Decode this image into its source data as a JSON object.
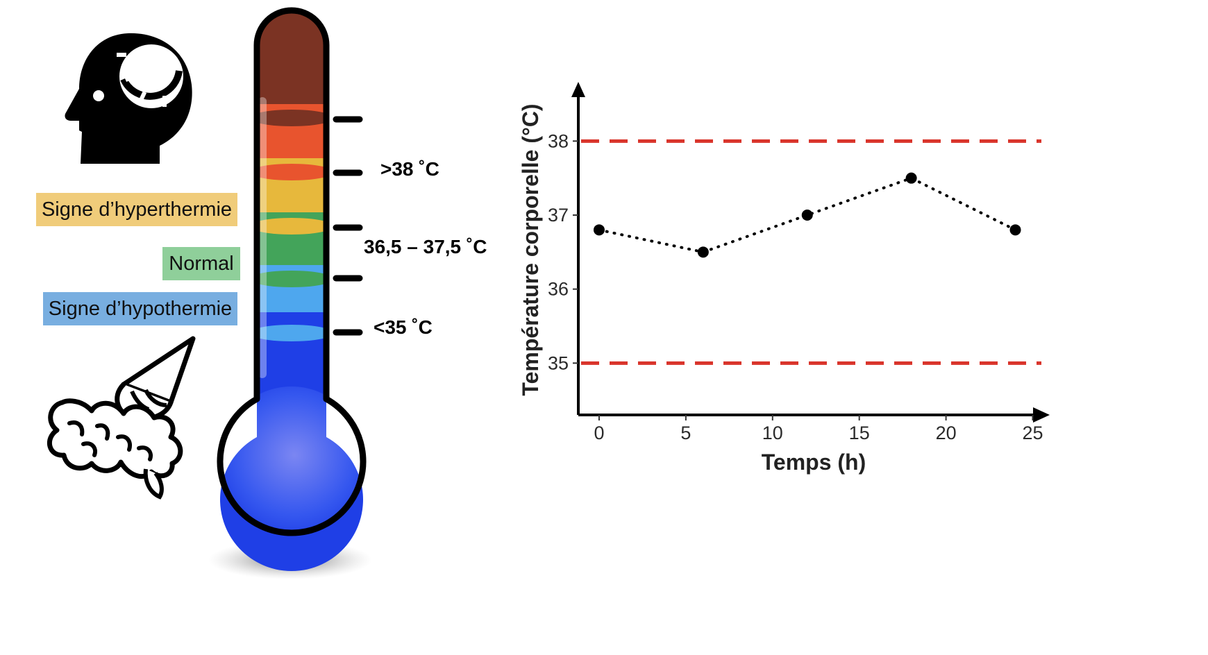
{
  "illustration": {
    "labels": {
      "hyperthermia": "Signe d’hyperthermie",
      "normal": "Normal",
      "hypothermia": "Signe d’hypothermie"
    },
    "thresholds": {
      "high": ">38 ˚C",
      "normal_range": "36,5 – 37,5 ˚C",
      "low": "<35 ˚C"
    },
    "colors": {
      "hyperthermia_box": "#f0cc7a",
      "normal_box": "#8fcf9a",
      "hypothermia_box": "#78aee0",
      "band_dark_red": "#7b3323",
      "band_orange": "#e8542e",
      "band_yellow": "#e7b83c",
      "band_green": "#43a45a",
      "band_light_blue": "#4ea7ee",
      "band_blue": "#1f3fe6"
    },
    "icons": [
      "hot-head-icon",
      "thermometer-icon",
      "melting-brain-icon"
    ]
  },
  "chart_data": {
    "type": "line",
    "xlabel": "Temps (h)",
    "ylabel": "Température corporelle (°C)",
    "x": [
      0,
      6,
      12,
      18,
      24
    ],
    "series": [
      {
        "values": [
          36.8,
          36.5,
          37.0,
          37.5,
          36.8
        ]
      }
    ],
    "reference_lines": [
      38,
      35
    ],
    "xticks": [
      0,
      5,
      10,
      15,
      20,
      25
    ],
    "yticks": [
      35,
      36,
      37,
      38
    ],
    "xlim": [
      -1.2,
      25.5
    ],
    "ylim": [
      34.3,
      38.5
    ],
    "line_style": "dotted",
    "reference_line_style": "dashed",
    "reference_line_color": "#d9342b",
    "marker_color": "#000000",
    "grid": false
  }
}
